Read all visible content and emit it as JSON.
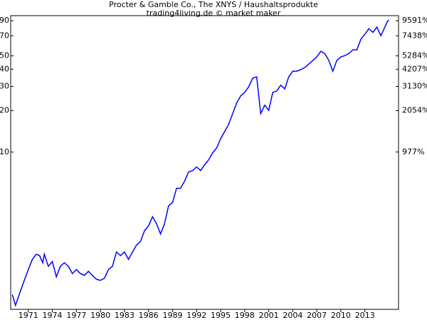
{
  "chart_data": {
    "type": "line",
    "title": "Procter & Gamble Co., The XNYS / Haushaltsprodukte",
    "subtitle": "trading4living.de © market maker",
    "log_scale": true,
    "xlim": [
      1968.8,
      2017.2
    ],
    "xticks": [
      1971,
      1974,
      1977,
      1980,
      1983,
      1986,
      1989,
      1992,
      1995,
      1998,
      2001,
      2004,
      2007,
      2010,
      2013
    ],
    "ylim": [
      0.72,
      98
    ],
    "yticks": [
      10,
      20,
      30,
      40,
      50,
      70,
      90
    ],
    "y2lim": [
      -22.5,
      10452
    ],
    "y2ticks": [
      {
        "value": 977,
        "label": "977%"
      },
      {
        "value": 2054,
        "label": "2054%"
      },
      {
        "value": 3130,
        "label": "3130%"
      },
      {
        "value": 4207,
        "label": "4207%"
      },
      {
        "value": 5284,
        "label": "5284%"
      },
      {
        "value": 7438,
        "label": "7438%"
      },
      {
        "value": 9591,
        "label": "9591%"
      }
    ],
    "x": [
      1969.0,
      1969.4,
      1970.0,
      1970.5,
      1971.0,
      1971.5,
      1972.0,
      1972.4,
      1972.8,
      1973.0,
      1973.5,
      1974.0,
      1974.5,
      1975.0,
      1975.5,
      1976.0,
      1976.5,
      1977.0,
      1977.5,
      1978.0,
      1978.5,
      1979.0,
      1979.5,
      1980.0,
      1980.5,
      1981.0,
      1981.5,
      1982.0,
      1982.5,
      1983.0,
      1983.5,
      1984.0,
      1984.5,
      1985.0,
      1985.5,
      1986.0,
      1986.5,
      1987.0,
      1987.5,
      1988.0,
      1988.5,
      1989.0,
      1989.5,
      1990.0,
      1990.5,
      1991.0,
      1991.5,
      1992.0,
      1992.5,
      1993.0,
      1993.5,
      1994.0,
      1994.5,
      1995.0,
      1995.5,
      1996.0,
      1996.5,
      1997.0,
      1997.5,
      1998.0,
      1998.5,
      1999.0,
      1999.5,
      2000.0,
      2000.5,
      2001.0,
      2001.5,
      2002.0,
      2002.5,
      2003.0,
      2003.5,
      2004.0,
      2004.5,
      2005.0,
      2005.5,
      2006.0,
      2006.5,
      2007.0,
      2007.5,
      2008.0,
      2008.5,
      2009.0,
      2009.5,
      2010.0,
      2010.5,
      2011.0,
      2011.5,
      2012.0,
      2012.5,
      2013.0,
      2013.5,
      2014.0,
      2014.5,
      2015.0,
      2015.5,
      2015.8,
      2016.0
    ],
    "series": [
      {
        "color": "#0000ff",
        "values": [
          0.92,
          0.77,
          0.97,
          1.17,
          1.4,
          1.66,
          1.81,
          1.77,
          1.57,
          1.81,
          1.48,
          1.6,
          1.24,
          1.48,
          1.57,
          1.48,
          1.31,
          1.4,
          1.31,
          1.27,
          1.36,
          1.27,
          1.19,
          1.17,
          1.21,
          1.4,
          1.48,
          1.88,
          1.77,
          1.88,
          1.66,
          1.88,
          2.11,
          2.24,
          2.68,
          2.91,
          3.39,
          3.02,
          2.54,
          3.02,
          4.06,
          4.31,
          5.46,
          5.46,
          6.14,
          7.17,
          7.34,
          7.79,
          7.34,
          8.07,
          8.77,
          9.88,
          10.7,
          12.5,
          14.1,
          15.9,
          19.0,
          22.7,
          25.6,
          27.1,
          29.8,
          34.4,
          35.2,
          19.0,
          21.9,
          20.1,
          27.1,
          27.8,
          30.6,
          28.8,
          35.2,
          38.7,
          38.7,
          39.7,
          41.1,
          43.6,
          46.3,
          49.1,
          54.0,
          52.0,
          46.3,
          38.7,
          46.3,
          49.1,
          50.2,
          52.0,
          55.3,
          55.3,
          66.1,
          71.9,
          78.8,
          74.1,
          80.9,
          70.1,
          80.9,
          88.9,
          91.0
        ]
      }
    ]
  }
}
